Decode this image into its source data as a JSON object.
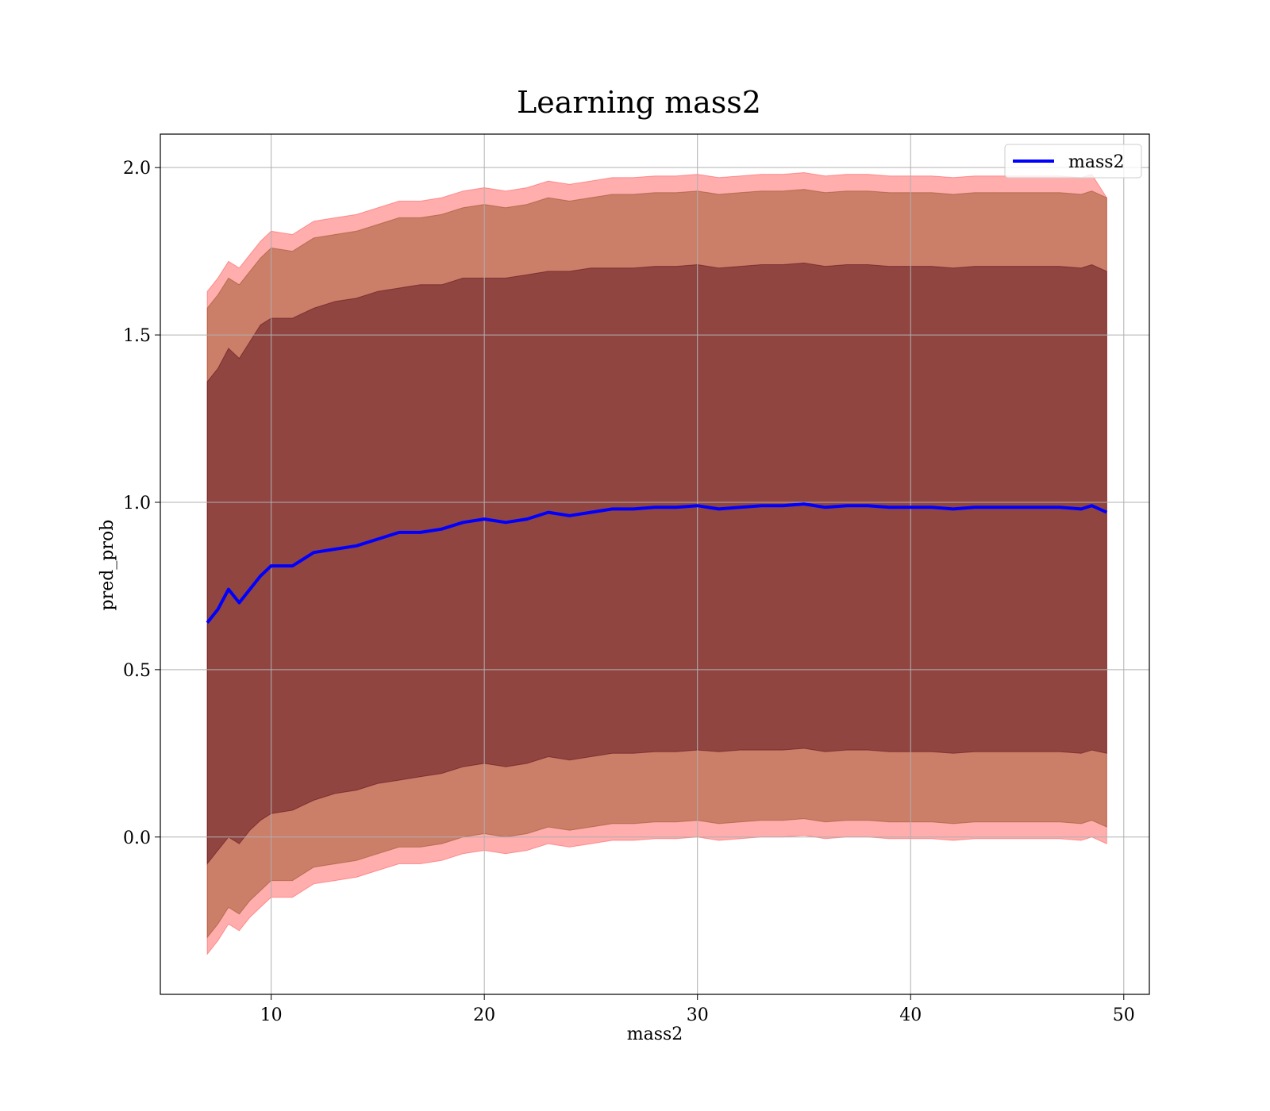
{
  "chart_data": {
    "type": "area",
    "title": "Learning mass2",
    "xlabel": "mass2",
    "ylabel": "pred_prob",
    "xlim": [
      4.8,
      51.2
    ],
    "ylim": [
      -0.47,
      2.1
    ],
    "xticks": [
      10,
      20,
      30,
      40,
      50
    ],
    "yticks": [
      0.0,
      0.5,
      1.0,
      1.5,
      2.0
    ],
    "grid": true,
    "legend": {
      "position": "top-right",
      "entries": [
        "mass2"
      ]
    },
    "colors": {
      "line": "#0000ff",
      "band_outer": "#ff0000",
      "band_middle": "#8b4513",
      "band_inner": "#4b0012",
      "grid": "#b0b0b0"
    },
    "x": [
      7,
      7.5,
      8,
      8.5,
      9,
      9.5,
      10,
      11,
      12,
      13,
      14,
      15,
      16,
      17,
      18,
      19,
      20,
      21,
      22,
      23,
      24,
      25,
      26,
      27,
      28,
      29,
      30,
      31,
      32,
      33,
      34,
      35,
      36,
      37,
      38,
      39,
      40,
      41,
      42,
      43,
      44,
      45,
      46,
      47,
      48,
      48.5,
      49.2
    ],
    "series": [
      {
        "name": "mass2",
        "role": "mean",
        "values": [
          0.64,
          0.68,
          0.74,
          0.7,
          0.74,
          0.78,
          0.81,
          0.81,
          0.85,
          0.86,
          0.87,
          0.89,
          0.91,
          0.91,
          0.92,
          0.94,
          0.95,
          0.94,
          0.95,
          0.97,
          0.96,
          0.97,
          0.98,
          0.98,
          0.985,
          0.985,
          0.99,
          0.98,
          0.985,
          0.99,
          0.99,
          0.995,
          0.985,
          0.99,
          0.99,
          0.985,
          0.985,
          0.985,
          0.98,
          0.985,
          0.985,
          0.985,
          0.985,
          0.985,
          0.98,
          0.99,
          0.97
        ]
      },
      {
        "role": "band_outer",
        "upper": [
          1.63,
          1.67,
          1.72,
          1.7,
          1.74,
          1.78,
          1.81,
          1.8,
          1.84,
          1.85,
          1.86,
          1.88,
          1.9,
          1.9,
          1.91,
          1.93,
          1.94,
          1.93,
          1.94,
          1.96,
          1.95,
          1.96,
          1.97,
          1.97,
          1.975,
          1.975,
          1.98,
          1.97,
          1.975,
          1.98,
          1.98,
          1.985,
          1.975,
          1.98,
          1.98,
          1.975,
          1.975,
          1.975,
          1.97,
          1.975,
          1.975,
          1.975,
          1.975,
          1.975,
          1.97,
          1.98,
          1.91
        ],
        "lower": [
          -0.35,
          -0.31,
          -0.26,
          -0.28,
          -0.24,
          -0.21,
          -0.18,
          -0.18,
          -0.14,
          -0.13,
          -0.12,
          -0.1,
          -0.08,
          -0.08,
          -0.07,
          -0.05,
          -0.04,
          -0.05,
          -0.04,
          -0.02,
          -0.03,
          -0.02,
          -0.01,
          -0.01,
          -0.005,
          -0.005,
          0.0,
          -0.01,
          -0.005,
          0.0,
          0.0,
          0.005,
          -0.005,
          0.0,
          0.0,
          -0.005,
          -0.005,
          -0.005,
          -0.01,
          -0.005,
          -0.005,
          -0.005,
          -0.005,
          -0.005,
          -0.01,
          0.0,
          -0.02
        ]
      },
      {
        "role": "band_middle",
        "upper": [
          1.58,
          1.62,
          1.67,
          1.65,
          1.69,
          1.73,
          1.76,
          1.75,
          1.79,
          1.8,
          1.81,
          1.83,
          1.85,
          1.85,
          1.86,
          1.88,
          1.89,
          1.88,
          1.89,
          1.91,
          1.9,
          1.91,
          1.92,
          1.92,
          1.925,
          1.925,
          1.93,
          1.92,
          1.925,
          1.93,
          1.93,
          1.935,
          1.925,
          1.93,
          1.93,
          1.925,
          1.925,
          1.925,
          1.92,
          1.925,
          1.925,
          1.925,
          1.925,
          1.925,
          1.92,
          1.93,
          1.91
        ],
        "lower": [
          -0.3,
          -0.26,
          -0.21,
          -0.23,
          -0.19,
          -0.16,
          -0.13,
          -0.13,
          -0.09,
          -0.08,
          -0.07,
          -0.05,
          -0.03,
          -0.03,
          -0.02,
          0.0,
          0.01,
          0.0,
          0.01,
          0.03,
          0.02,
          0.03,
          0.04,
          0.04,
          0.045,
          0.045,
          0.05,
          0.04,
          0.045,
          0.05,
          0.05,
          0.055,
          0.045,
          0.05,
          0.05,
          0.045,
          0.045,
          0.045,
          0.04,
          0.045,
          0.045,
          0.045,
          0.045,
          0.045,
          0.04,
          0.05,
          0.03
        ]
      },
      {
        "role": "band_inner",
        "upper": [
          1.36,
          1.4,
          1.46,
          1.43,
          1.48,
          1.53,
          1.55,
          1.55,
          1.58,
          1.6,
          1.61,
          1.63,
          1.64,
          1.65,
          1.65,
          1.67,
          1.67,
          1.67,
          1.68,
          1.69,
          1.69,
          1.7,
          1.7,
          1.7,
          1.705,
          1.705,
          1.71,
          1.7,
          1.705,
          1.71,
          1.71,
          1.715,
          1.705,
          1.71,
          1.71,
          1.705,
          1.705,
          1.705,
          1.7,
          1.705,
          1.705,
          1.705,
          1.705,
          1.705,
          1.7,
          1.71,
          1.69
        ],
        "lower": [
          -0.08,
          -0.04,
          0.0,
          -0.02,
          0.02,
          0.05,
          0.07,
          0.08,
          0.11,
          0.13,
          0.14,
          0.16,
          0.17,
          0.18,
          0.19,
          0.21,
          0.22,
          0.21,
          0.22,
          0.24,
          0.23,
          0.24,
          0.25,
          0.25,
          0.255,
          0.255,
          0.26,
          0.255,
          0.26,
          0.26,
          0.26,
          0.265,
          0.255,
          0.26,
          0.26,
          0.255,
          0.255,
          0.255,
          0.25,
          0.255,
          0.255,
          0.255,
          0.255,
          0.255,
          0.25,
          0.26,
          0.25
        ]
      }
    ]
  }
}
